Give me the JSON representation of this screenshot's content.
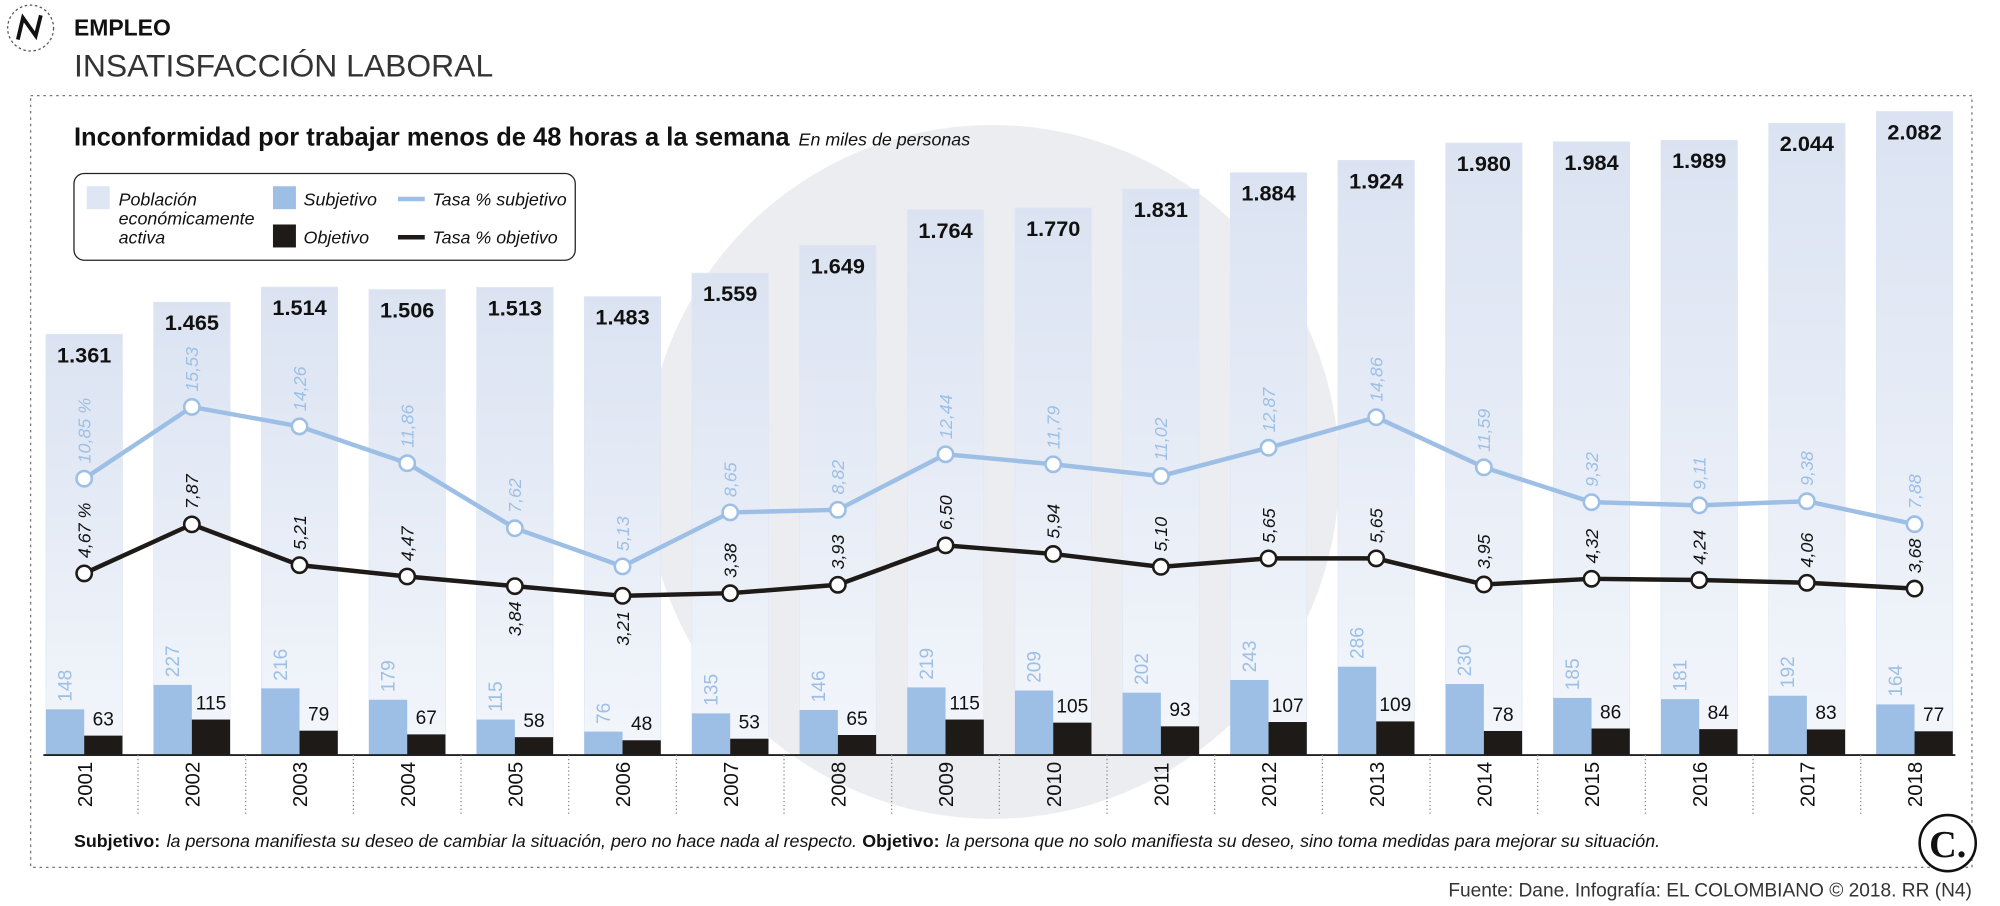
{
  "header": {
    "section": "EMPLEO",
    "heading": "INSATISFACCIÓN LABORAL"
  },
  "chart_data": {
    "type": "bar_line",
    "title": "Inconformidad por trabajar menos de 48 horas a la semana",
    "subtitle": "En miles de personas",
    "categories": [
      "2001",
      "2002",
      "2003",
      "2004",
      "2005",
      "2006",
      "2007",
      "2008",
      "2009",
      "2010",
      "2011",
      "2012",
      "2013",
      "2014",
      "2015",
      "2016",
      "2017",
      "2018"
    ],
    "ylim": [
      0,
      2100
    ],
    "y2lim": [
      0,
      20
    ],
    "series": [
      {
        "name": "Población económicamente activa",
        "color": "#dfe6f3",
        "kind": "bar",
        "values": [
          1361,
          1465,
          1514,
          1506,
          1513,
          1483,
          1559,
          1649,
          1764,
          1770,
          1831,
          1884,
          1924,
          1980,
          1984,
          1989,
          2044,
          2082
        ],
        "value_labels": [
          "1.361",
          "1.465",
          "1.514",
          "1.506",
          "1.513",
          "1.483",
          "1.559",
          "1.649",
          "1.764",
          "1.770",
          "1.831",
          "1.884",
          "1.924",
          "1.980",
          "1.984",
          "1.989",
          "2.044",
          "2.082"
        ]
      },
      {
        "name": "Subjetivo",
        "color": "#9dbfe5",
        "kind": "bar",
        "values": [
          148,
          227,
          216,
          179,
          115,
          76,
          135,
          146,
          219,
          209,
          202,
          243,
          286,
          230,
          185,
          181,
          192,
          164
        ]
      },
      {
        "name": "Objetivo",
        "color": "#1e1a18",
        "kind": "bar",
        "values": [
          63,
          115,
          79,
          67,
          58,
          48,
          53,
          65,
          115,
          105,
          93,
          107,
          109,
          78,
          86,
          84,
          83,
          77
        ]
      },
      {
        "name": "Tasa % subjetivo",
        "color": "#9dbfe5",
        "kind": "line",
        "axis": "y2",
        "values": [
          10.85,
          15.53,
          14.26,
          11.86,
          7.62,
          5.13,
          8.65,
          8.82,
          12.44,
          11.79,
          11.02,
          12.87,
          14.86,
          11.59,
          9.32,
          9.11,
          9.38,
          7.88
        ],
        "value_labels": [
          "10,85 %",
          "15,53",
          "14,26",
          "11,86",
          "7,62",
          "5,13",
          "8,65",
          "8,82",
          "12,44",
          "11,79",
          "11,02",
          "12,87",
          "14,86",
          "11,59",
          "9,32",
          "9,11",
          "9,38",
          "7,88"
        ]
      },
      {
        "name": "Tasa % objetivo",
        "color": "#1e1a18",
        "kind": "line",
        "axis": "y2",
        "values": [
          4.67,
          7.87,
          5.21,
          4.47,
          3.84,
          3.21,
          3.38,
          3.93,
          6.5,
          5.94,
          5.1,
          5.65,
          5.65,
          3.95,
          4.32,
          4.24,
          4.06,
          3.68
        ],
        "value_labels": [
          "4,67 %",
          "7,87",
          "5,21",
          "4,47",
          "3,84",
          "3,21",
          "3,38",
          "3,93",
          "6,50",
          "5,94",
          "5,10",
          "5,65",
          "5,65",
          "3,95",
          "4,32",
          "4,24",
          "4,06",
          "3,68"
        ]
      }
    ]
  },
  "notes": [
    {
      "term": "Subjetivo:",
      "text": "la persona manifiesta su deseo de cambiar la situación, pero no hace nada al respecto."
    },
    {
      "term": "Objetivo:",
      "text": "la persona que no solo manifiesta su deseo, sino toma medidas para mejorar su situación."
    }
  ],
  "source": "Fuente: Dane. Infografía: EL COLOMBIANO © 2018. RR (N4)"
}
